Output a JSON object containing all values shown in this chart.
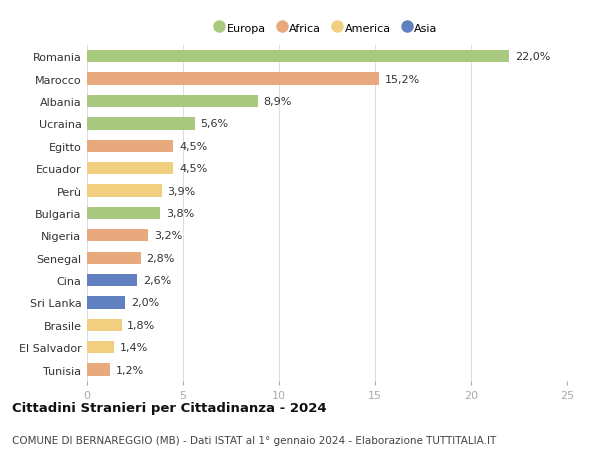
{
  "countries": [
    "Romania",
    "Marocco",
    "Albania",
    "Ucraina",
    "Egitto",
    "Ecuador",
    "Perù",
    "Bulgaria",
    "Nigeria",
    "Senegal",
    "Cina",
    "Sri Lanka",
    "Brasile",
    "El Salvador",
    "Tunisia"
  ],
  "values": [
    22.0,
    15.2,
    8.9,
    5.6,
    4.5,
    4.5,
    3.9,
    3.8,
    3.2,
    2.8,
    2.6,
    2.0,
    1.8,
    1.4,
    1.2
  ],
  "labels": [
    "22,0%",
    "15,2%",
    "8,9%",
    "5,6%",
    "4,5%",
    "4,5%",
    "3,9%",
    "3,8%",
    "3,2%",
    "2,8%",
    "2,6%",
    "2,0%",
    "1,8%",
    "1,4%",
    "1,2%"
  ],
  "continents": [
    "Europa",
    "Africa",
    "Europa",
    "Europa",
    "Africa",
    "America",
    "America",
    "Europa",
    "Africa",
    "Africa",
    "Asia",
    "Asia",
    "America",
    "America",
    "Africa"
  ],
  "continent_colors": {
    "Europa": "#a8c97f",
    "Africa": "#e8a97e",
    "America": "#f0d080",
    "Asia": "#6080c0"
  },
  "legend_order": [
    "Europa",
    "Africa",
    "America",
    "Asia"
  ],
  "title": "Cittadini Stranieri per Cittadinanza - 2024",
  "subtitle": "COMUNE DI BERNAREGGIO (MB) - Dati ISTAT al 1° gennaio 2024 - Elaborazione TUTTITALIA.IT",
  "xlim": [
    0,
    25
  ],
  "xticks": [
    0,
    5,
    10,
    15,
    20,
    25
  ],
  "background_color": "#ffffff",
  "grid_color": "#dddddd",
  "bar_height": 0.55,
  "label_fontsize": 8,
  "tick_fontsize": 8,
  "title_fontsize": 9.5,
  "subtitle_fontsize": 7.5
}
